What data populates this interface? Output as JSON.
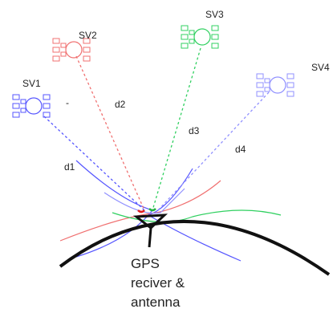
{
  "satellites": [
    {
      "label": "SV1",
      "distance": "d1"
    },
    {
      "label": "SV2",
      "distance": "d2"
    },
    {
      "label": "SV3",
      "distance": "d3"
    },
    {
      "label": "SV4",
      "distance": "d4"
    }
  ],
  "receiver": {
    "lines": [
      "GPS",
      "reciver &",
      "antenna"
    ]
  }
}
